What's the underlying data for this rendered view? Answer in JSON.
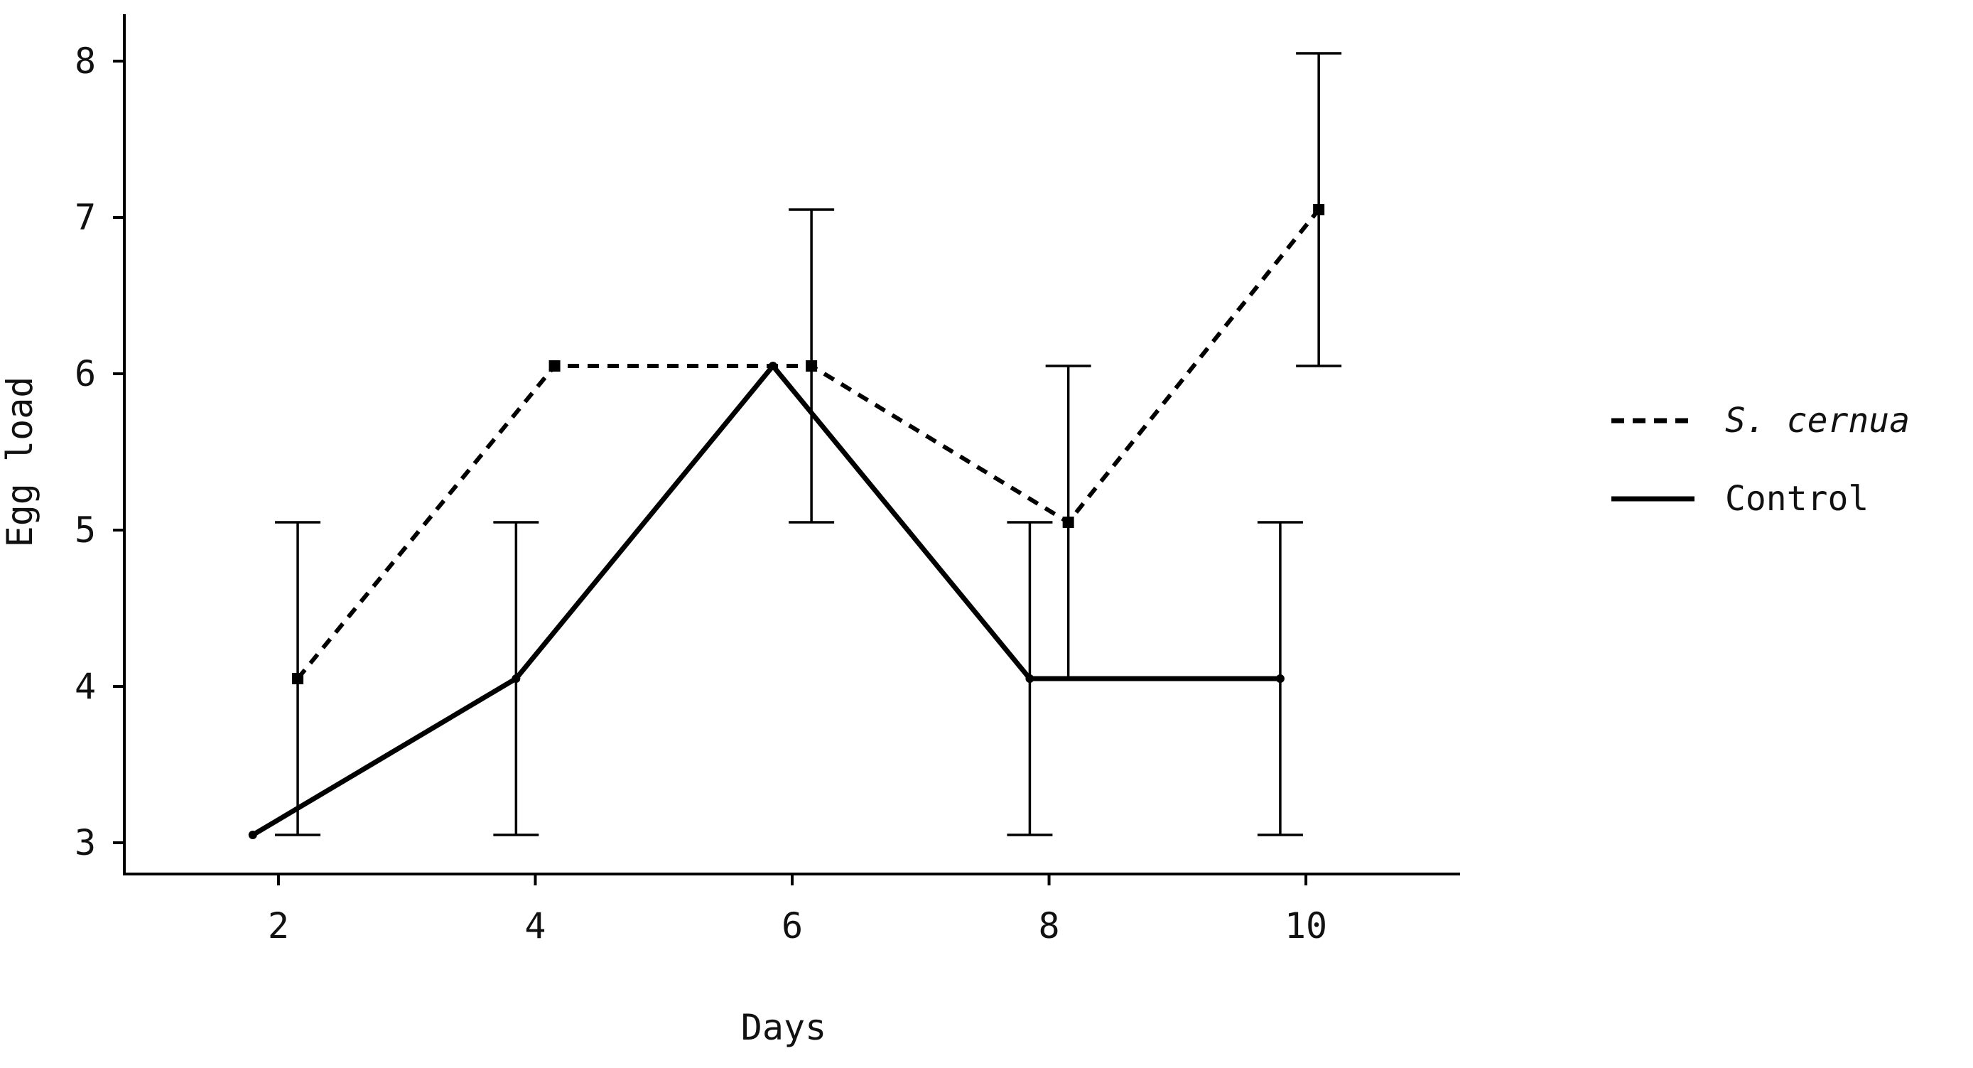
{
  "chart_data": {
    "type": "line",
    "xlabel": "Days",
    "ylabel": "Egg load",
    "xlim": [
      0.8,
      11.2
    ],
    "ylim": [
      2.8,
      8.3
    ],
    "x_ticks": [
      2,
      4,
      6,
      8,
      10
    ],
    "x_tick_labels": [
      "2",
      "4",
      "6",
      "8",
      "10"
    ],
    "y_ticks": [
      3,
      4,
      5,
      6,
      7,
      8
    ],
    "y_tick_labels": [
      "3",
      "4",
      "5",
      "6",
      "7",
      "8"
    ],
    "grid": false,
    "legend_position": "right",
    "series": [
      {
        "name": "S. cernua",
        "style": "dashed",
        "color": "#000000",
        "x": [
          2.15,
          4.15,
          6.15,
          8.15,
          10.1
        ],
        "y": [
          4.05,
          6.05,
          6.05,
          5.05,
          7.05
        ],
        "error_low": [
          3.05,
          null,
          5.05,
          4.05,
          6.05
        ],
        "error_high": [
          5.05,
          null,
          7.05,
          6.05,
          8.05
        ]
      },
      {
        "name": "Control",
        "style": "solid",
        "color": "#000000",
        "x": [
          1.8,
          3.85,
          5.85,
          7.85,
          9.8
        ],
        "y": [
          3.05,
          4.05,
          6.05,
          4.05,
          4.05
        ],
        "error_low": [
          null,
          3.05,
          null,
          3.05,
          3.05
        ],
        "error_high": [
          null,
          5.05,
          null,
          5.05,
          5.05
        ]
      }
    ]
  }
}
